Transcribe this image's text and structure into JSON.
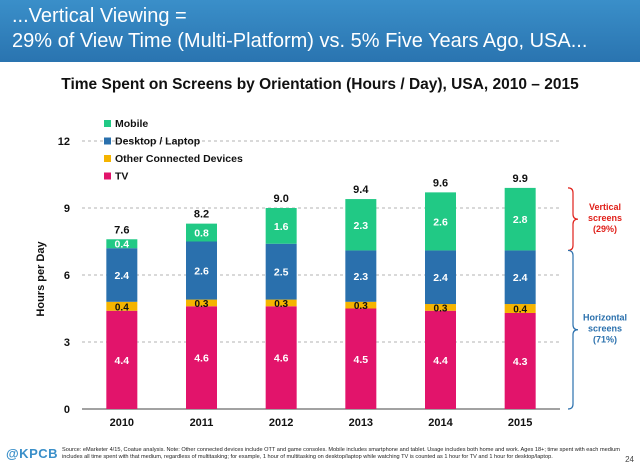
{
  "header": {
    "line1": "...Vertical Viewing =",
    "line2": "29% of View Time (Multi-Platform) vs. 5% Five Years Ago, USA..."
  },
  "chart_data": {
    "type": "stacked-bar",
    "title": "Time Spent on Screens by Orientation (Hours / Day), USA, 2010 – 2015",
    "xlabel": "",
    "ylabel": "Hours per Day",
    "ylim": [
      0,
      12
    ],
    "yticks": [
      0,
      3,
      6,
      9,
      12
    ],
    "categories": [
      "2010",
      "2011",
      "2012",
      "2013",
      "2014",
      "2015"
    ],
    "series": [
      {
        "name": "TV",
        "color": "#e2146b",
        "values": [
          4.4,
          4.6,
          4.6,
          4.5,
          4.4,
          4.3
        ],
        "labels": [
          "4.4",
          "4.6",
          "4.6",
          "4.5",
          "4.4",
          "4.3"
        ]
      },
      {
        "name": "Other Connected Devices",
        "color": "#f5b400",
        "values": [
          0.4,
          0.3,
          0.3,
          0.3,
          0.3,
          0.4
        ],
        "labels": [
          "0.4",
          "0.3",
          "0.3",
          "0.3",
          "0.3",
          "0.4"
        ]
      },
      {
        "name": "Desktop / Laptop",
        "color": "#2a70ad",
        "values": [
          2.4,
          2.6,
          2.5,
          2.3,
          2.4,
          2.4
        ],
        "labels": [
          "2.4",
          "2.6",
          "2.5",
          "2.3",
          "2.4",
          "2.4"
        ]
      },
      {
        "name": "Mobile",
        "color": "#21c985",
        "values": [
          0.4,
          0.8,
          1.6,
          2.3,
          2.6,
          2.8
        ],
        "labels": [
          "0.4",
          "0.8",
          "1.6",
          "2.3",
          "2.6",
          "2.8"
        ]
      }
    ],
    "totals": [
      7.6,
      8.2,
      9.0,
      9.4,
      9.6,
      9.9
    ],
    "total_labels": [
      "7.6",
      "8.2",
      "9.0",
      "9.4",
      "9.6",
      "9.9"
    ],
    "legend": {
      "position": "top-left",
      "order": [
        "Mobile",
        "Desktop / Laptop",
        "Other Connected Devices",
        "TV"
      ]
    },
    "annotations": {
      "vertical": {
        "line1": "Vertical",
        "line2": "screens",
        "line3": "(29%)",
        "color": "#e0201a",
        "range": [
          7.1,
          9.9
        ]
      },
      "horizontal": {
        "line1": "Horizontal",
        "line2": "screens",
        "line3": "(71%)",
        "color": "#2a70ad",
        "range": [
          0,
          7.1
        ]
      }
    }
  },
  "footer": {
    "logo": "@KPCB",
    "source": "Source: eMarketer 4/15, Coatue analysis. Note: Other connected devices include OTT and game consoles. Mobile includes smartphone and tablet. Usage includes both home and work. Ages 18+; time spent with each medium includes all time spent with that medium, regardless of multitasking; for example, 1 hour of multitasking on desktop/laptop while watching TV is counted as 1 hour for TV and 1 hour for desktop/laptop.",
    "page": "24"
  }
}
